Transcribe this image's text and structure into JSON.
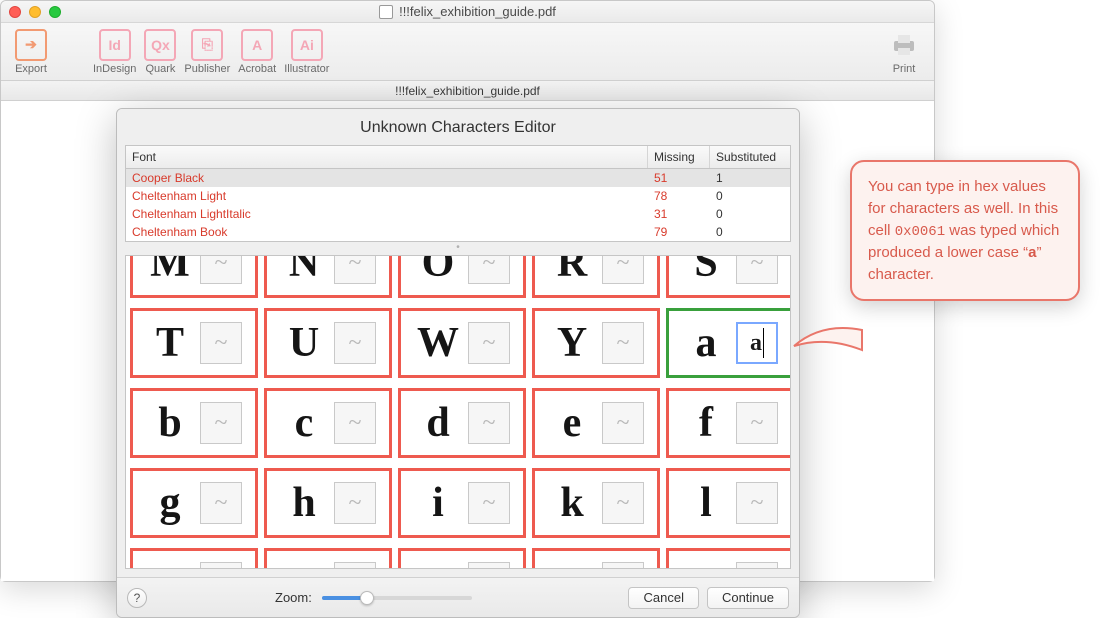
{
  "window": {
    "filename": "!!!felix_exhibition_guide.pdf",
    "traffic": {
      "close": "#ff5f57",
      "min": "#ffbd2e",
      "max": "#28c940"
    }
  },
  "toolbar": [
    {
      "name": "export",
      "label": "Export",
      "color": "#f29a72"
    },
    {
      "name": "indesign",
      "label": "InDesign",
      "color": "#f4a7b6"
    },
    {
      "name": "quark",
      "label": "Quark",
      "color": "#f4a7b6"
    },
    {
      "name": "publisher",
      "label": "Publisher",
      "color": "#f4a7b6"
    },
    {
      "name": "acrobat",
      "label": "Acrobat",
      "color": "#f4a7b6"
    },
    {
      "name": "illustrator",
      "label": "Illustrator",
      "color": "#f4a7b6"
    }
  ],
  "toolbar_right": {
    "name": "print",
    "label": "Print",
    "color": "#8a8a8a"
  },
  "subtab": "!!!felix_exhibition_guide.pdf",
  "dialog": {
    "title": "Unknown Characters Editor",
    "columns": {
      "font": "Font",
      "missing": "Missing",
      "substituted": "Substituted"
    },
    "rows": [
      {
        "font": "Cooper Black",
        "missing": "51",
        "substituted": "1",
        "selected": true
      },
      {
        "font": "Cheltenham Light",
        "missing": "78",
        "substituted": "0"
      },
      {
        "font": "Cheltenham LightItalic",
        "missing": "31",
        "substituted": "0"
      },
      {
        "font": "Cheltenham Book",
        "missing": "79",
        "substituted": "0"
      }
    ],
    "grid": [
      {
        "glyph": "M",
        "slot": "~"
      },
      {
        "glyph": "N",
        "slot": "~",
        "style": "clipped"
      },
      {
        "glyph": "O",
        "slot": "~"
      },
      {
        "glyph": "R",
        "slot": "~"
      },
      {
        "glyph": "S",
        "slot": "~"
      },
      {
        "glyph": "T",
        "slot": "~"
      },
      {
        "glyph": "U",
        "slot": "~"
      },
      {
        "glyph": "W",
        "slot": "~"
      },
      {
        "glyph": "Y",
        "slot": "~"
      },
      {
        "glyph": "a",
        "slot": "a",
        "filled": true,
        "green": true
      },
      {
        "glyph": "b",
        "slot": "~"
      },
      {
        "glyph": "c",
        "slot": "~"
      },
      {
        "glyph": "d",
        "slot": "~"
      },
      {
        "glyph": "e",
        "slot": "~"
      },
      {
        "glyph": "f",
        "slot": "~"
      },
      {
        "glyph": "g",
        "slot": "~"
      },
      {
        "glyph": "h",
        "slot": "~"
      },
      {
        "glyph": "i",
        "slot": "~"
      },
      {
        "glyph": "k",
        "slot": "~"
      },
      {
        "glyph": "l",
        "slot": "~"
      },
      {
        "glyph": " ",
        "slot": " "
      },
      {
        "glyph": " ",
        "slot": " "
      },
      {
        "glyph": " ",
        "slot": " "
      },
      {
        "glyph": " ",
        "slot": " "
      },
      {
        "glyph": " ",
        "slot": " "
      }
    ],
    "footer": {
      "help": "?",
      "zoom_label": "Zoom:",
      "zoom_percent": 30,
      "cancel": "Cancel",
      "continue": "Continue"
    }
  },
  "callout": {
    "pre": "You can type in hex values for characters as well. In this cell ",
    "code": "0x0061",
    "mid": " was typed which produced a lower case “",
    "bold": "a",
    "post": "” character."
  },
  "colors": {
    "red_border": "#ee5a4f",
    "green_border": "#39a03c",
    "font_link": "#d83a2b",
    "callout_bg": "#fdf2ef",
    "callout_border": "#e9766a"
  }
}
